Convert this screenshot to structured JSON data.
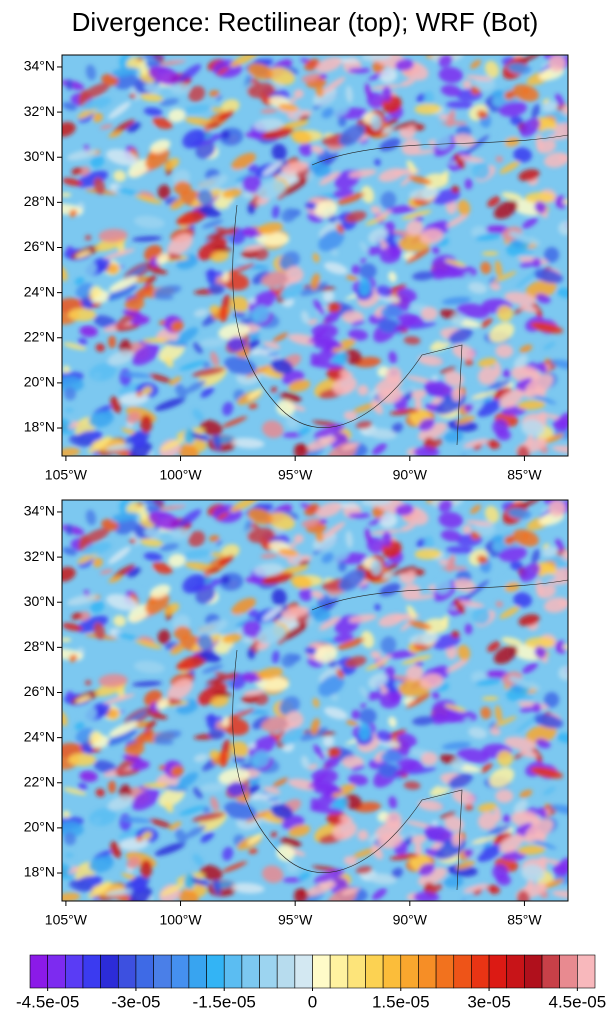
{
  "title": "Divergence: Rectilinear (top); WRF (Bot)",
  "chart_data": [
    {
      "type": "contour",
      "xlim": [
        -105.17,
        -83.1
      ],
      "ylim": [
        16.76,
        34.53
      ],
      "xticks": [
        {
          "value": -105,
          "label": "105°W"
        },
        {
          "value": -100,
          "label": "100°W"
        },
        {
          "value": -95,
          "label": "95°W"
        },
        {
          "value": -90,
          "label": "90°W"
        },
        {
          "value": -85,
          "label": "85°W"
        }
      ],
      "yticks": [
        {
          "value": 34,
          "label": "34°N"
        },
        {
          "value": 32,
          "label": "32°N"
        },
        {
          "value": 30,
          "label": "30°N"
        },
        {
          "value": 28,
          "label": "28°N"
        },
        {
          "value": 26,
          "label": "26°N"
        },
        {
          "value": 24,
          "label": "24°N"
        },
        {
          "value": 22,
          "label": "22°N"
        },
        {
          "value": 20,
          "label": "20°N"
        },
        {
          "value": 18,
          "label": "18°N"
        }
      ]
    },
    {
      "type": "contour",
      "xlim": [
        -105.17,
        -83.1
      ],
      "ylim": [
        16.76,
        34.53
      ],
      "xticks": [
        {
          "value": -105,
          "label": "105°W"
        },
        {
          "value": -100,
          "label": "100°W"
        },
        {
          "value": -95,
          "label": "95°W"
        },
        {
          "value": -90,
          "label": "90°W"
        },
        {
          "value": -85,
          "label": "85°W"
        }
      ],
      "yticks": [
        {
          "value": 34,
          "label": "34°N"
        },
        {
          "value": 32,
          "label": "32°N"
        },
        {
          "value": 30,
          "label": "30°N"
        },
        {
          "value": 28,
          "label": "28°N"
        },
        {
          "value": 26,
          "label": "26°N"
        },
        {
          "value": 24,
          "label": "24°N"
        },
        {
          "value": 22,
          "label": "22°N"
        },
        {
          "value": 20,
          "label": "20°N"
        },
        {
          "value": 18,
          "label": "18°N"
        }
      ]
    }
  ],
  "colorbar": {
    "clim": [
      -4.8e-05,
      4.8e-05
    ],
    "colors": [
      "#8b1ae8",
      "#7d2bf0",
      "#5a3cf5",
      "#3b3bf0",
      "#2c2cd8",
      "#3d50e0",
      "#3e6ae6",
      "#4a7fe8",
      "#4590f0",
      "#38a4f0",
      "#33b4f5",
      "#5bbdf2",
      "#7cc8f0",
      "#9cd4f0",
      "#b7dcee",
      "#d3e8f2",
      "#fffbc8",
      "#fff2a0",
      "#fde47a",
      "#fcd252",
      "#fbbd3a",
      "#f9a72e",
      "#f68e26",
      "#f2721e",
      "#ee5418",
      "#e93414",
      "#dc1a14",
      "#c81418",
      "#b0101c",
      "#c84048",
      "#e88a90",
      "#f8b8bc"
    ],
    "ticks": [
      {
        "value": -4.5e-05,
        "label": "-4.5e-05"
      },
      {
        "value": -3e-05,
        "label": "-3e-05"
      },
      {
        "value": -1.5e-05,
        "label": "-1.5e-05"
      },
      0,
      {
        "value": 1.5e-05,
        "label": "1.5e-05"
      },
      {
        "value": 3e-05,
        "label": "3e-05"
      },
      {
        "value": 4.5e-05,
        "label": "4.5e-05"
      }
    ]
  }
}
